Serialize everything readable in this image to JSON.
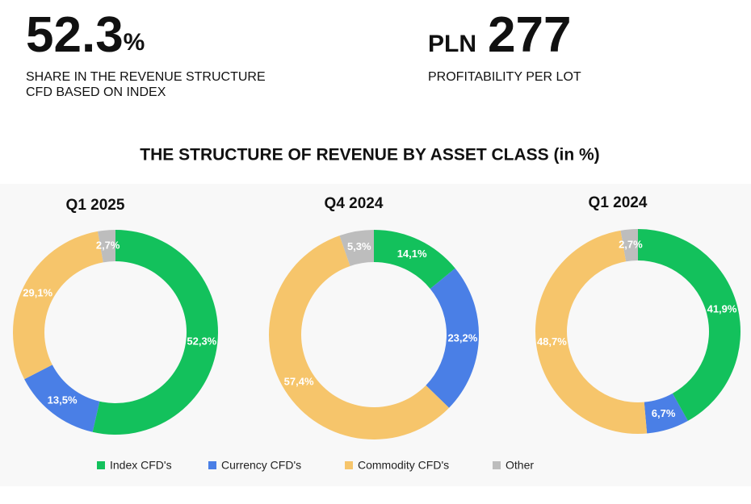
{
  "kpis": [
    {
      "value": 52.3,
      "unit": "%",
      "label_lines": [
        "SHARE IN THE REVENUE STRUCTURE",
        "CFD BASED ON INDEX"
      ]
    },
    {
      "prefix": "PLN",
      "value": 277,
      "label_lines": [
        "PROFITABILITY PER LOT"
      ]
    }
  ],
  "title": "THE STRUCTURE OF REVENUE BY ASSET CLASS (in %)",
  "chart_data": [
    {
      "type": "donut",
      "title": "Q1 2025",
      "categories": [
        "Index CFD's",
        "Currency CFD's",
        "Commodity CFD's",
        "Other"
      ],
      "colors": [
        "#13c15c",
        "#4a7fe6",
        "#f6c56b",
        "#bdbdbd"
      ],
      "values": [
        52.3,
        13.5,
        29.1,
        2.7
      ],
      "value_labels": [
        "52,3%",
        "13,5%",
        "29,1%",
        "2,7%"
      ]
    },
    {
      "type": "donut",
      "title": "Q4 2024",
      "categories": [
        "Index CFD's",
        "Currency CFD's",
        "Commodity CFD's",
        "Other"
      ],
      "colors": [
        "#13c15c",
        "#4a7fe6",
        "#f6c56b",
        "#bdbdbd"
      ],
      "values": [
        14.1,
        23.2,
        57.4,
        5.3
      ],
      "value_labels": [
        "14,1%",
        "23,2%",
        "57,4%",
        "5,3%"
      ]
    },
    {
      "type": "donut",
      "title": "Q1 2024",
      "categories": [
        "Index CFD's",
        "Currency CFD's",
        "Commodity CFD's",
        "Other"
      ],
      "colors": [
        "#13c15c",
        "#4a7fe6",
        "#f6c56b",
        "#bdbdbd"
      ],
      "values": [
        41.9,
        6.7,
        48.7,
        2.7
      ],
      "value_labels": [
        "41,9%",
        "6,7%",
        "48,7%",
        "2,7%"
      ]
    }
  ]
}
